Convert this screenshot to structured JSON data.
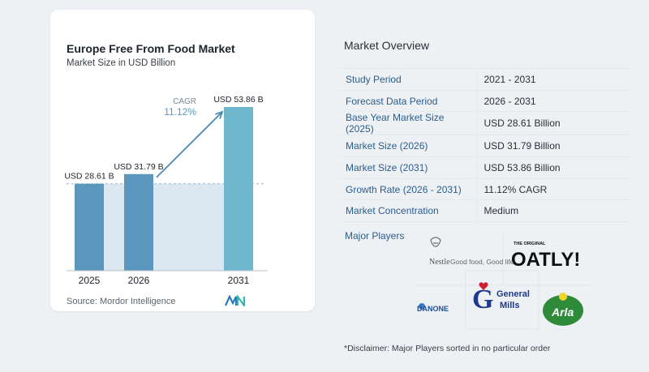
{
  "chart": {
    "title": "Europe Free From Food Market",
    "subtitle": "Market Size in USD Billion",
    "cagr_label": "CAGR",
    "cagr_value": "11.12%",
    "source": "Source:  Mordor Intelligence",
    "colors": {
      "bar": "#5b97bc",
      "bar_light": "#6fb7cc",
      "shade": "#dbe8f1",
      "arrow": "#4a88b5",
      "cagr_text": "#5b97bc"
    }
  },
  "chart_data": {
    "type": "bar",
    "categories": [
      "2025",
      "2026",
      "2031"
    ],
    "values": [
      28.61,
      31.79,
      53.86
    ],
    "data_labels": [
      "USD 28.61 B",
      "USD 31.79 B",
      "USD 53.86 B"
    ],
    "title": "Europe Free From Food Market",
    "subtitle": "Market Size in USD Billion",
    "annotation": {
      "label": "CAGR",
      "value": "11.12%"
    },
    "grid": false
  },
  "overview": {
    "title": "Market Overview",
    "rows": [
      {
        "label": "Study Period",
        "value": "2021 - 2031"
      },
      {
        "label": "Forecast Data Period",
        "value": "2026 - 2031"
      },
      {
        "label": "Base Year Market Size (2025)",
        "value": "USD 28.61 Billion"
      },
      {
        "label": "Market Size (2026)",
        "value": "USD 31.79 Billion"
      },
      {
        "label": "Market Size (2031)",
        "value": "USD 53.86 Billion"
      },
      {
        "label": "Growth Rate (2026 - 2031)",
        "value": "11.12% CAGR"
      },
      {
        "label": "Market Concentration",
        "value": "Medium"
      }
    ]
  },
  "players": {
    "title": "Major Players",
    "logos": {
      "nestle_brand": "Nestle",
      "nestle_tagline": "Good food, Good life",
      "oatly_top": "THE ORIGINAL",
      "oatly": "OATLY!",
      "danone": "DANONE",
      "general_mills": [
        "General",
        "Mills"
      ],
      "arla": "Arla"
    }
  },
  "disclaimer": "*Disclaimer: Major Players sorted in no particular order"
}
